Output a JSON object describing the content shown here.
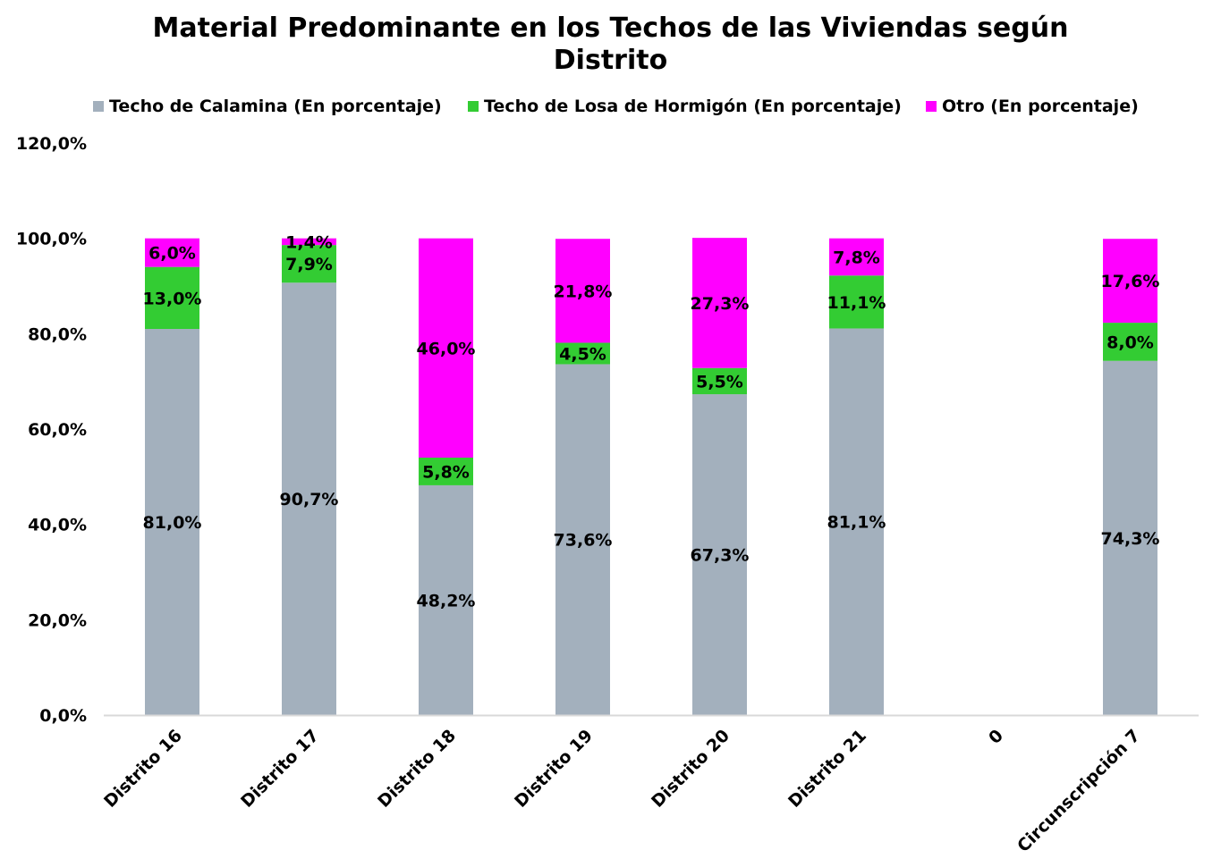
{
  "chart_data": {
    "type": "bar",
    "stacked": true,
    "title_lines": [
      "Material Predominante en los Techos de las Viviendas según",
      "Distrito"
    ],
    "categories": [
      "Distrito 16",
      "Distrito 17",
      "Distrito 18",
      "Distrito 19",
      "Distrito 20",
      "Distrito 21",
      "0",
      "Circunscripción 7"
    ],
    "series": [
      {
        "name": "Techo de Calamina (En porcentaje)",
        "color": "#a3b0bd",
        "values": [
          81.0,
          90.7,
          48.2,
          73.6,
          67.3,
          81.1,
          null,
          74.3
        ],
        "labels": [
          "81,0%",
          "90,7%",
          "48,2%",
          "73,6%",
          "67,3%",
          "81,1%",
          null,
          "74,3%"
        ]
      },
      {
        "name": "Techo de Losa de Hormigón (En porcentaje)",
        "color": "#33cc33",
        "values": [
          13.0,
          7.9,
          5.8,
          4.5,
          5.5,
          11.1,
          null,
          8.0
        ],
        "labels": [
          "13,0%",
          "7,9%",
          "5,8%",
          "4,5%",
          "5,5%",
          "11,1%",
          null,
          "8,0%"
        ]
      },
      {
        "name": "Otro (En porcentaje)",
        "color": "#ff00ff",
        "values": [
          6.0,
          1.4,
          46.0,
          21.8,
          27.3,
          7.8,
          null,
          17.6
        ],
        "labels": [
          "6,0%",
          "1,4%",
          "46,0%",
          "21,8%",
          "27,3%",
          "7,8%",
          null,
          "17,6%"
        ]
      }
    ],
    "ylim": [
      0,
      120
    ],
    "yticks": [
      0,
      20,
      40,
      60,
      80,
      100,
      120
    ],
    "ytick_labels": [
      "0,0%",
      "20,0%",
      "40,0%",
      "60,0%",
      "80,0%",
      "100,0%",
      "120,0%"
    ],
    "legend_position": "top",
    "grid": false
  }
}
